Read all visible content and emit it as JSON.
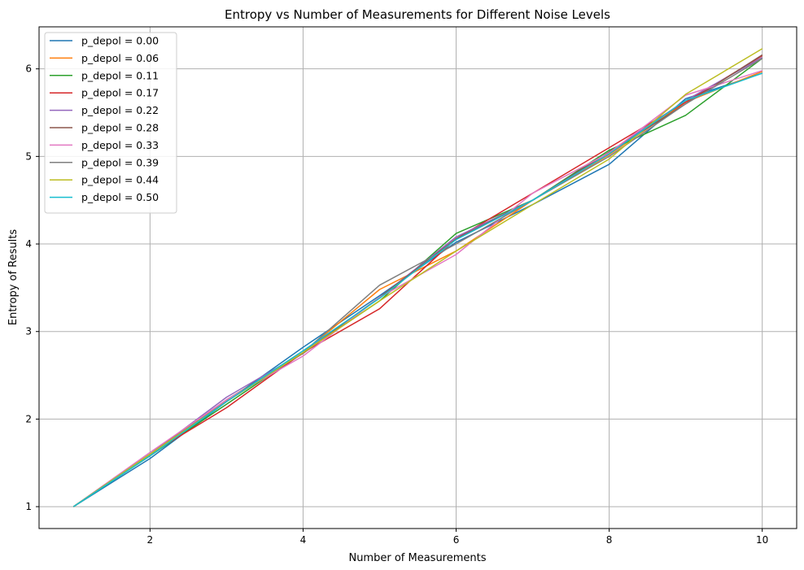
{
  "chart_data": {
    "type": "line",
    "title": "Entropy vs Number of Measurements for Different Noise Levels",
    "xlabel": "Number of Measurements",
    "ylabel": "Entropy of Results",
    "xlim": [
      0.55,
      10.45
    ],
    "ylim": [
      0.75,
      6.48
    ],
    "xticks": [
      2,
      4,
      6,
      8,
      10
    ],
    "yticks": [
      1,
      2,
      3,
      4,
      5,
      6
    ],
    "grid": true,
    "legend_position": "upper-left",
    "x": [
      1,
      2,
      3,
      4,
      5,
      6,
      7,
      8,
      9,
      10
    ],
    "series": [
      {
        "name": "p_depol = 0.00",
        "color": "#1f77b4",
        "values": [
          1.0,
          1.55,
          2.2,
          2.82,
          3.41,
          4.02,
          4.45,
          4.91,
          5.66,
          5.95
        ]
      },
      {
        "name": "p_depol = 0.06",
        "color": "#ff7f0e",
        "values": [
          1.0,
          1.6,
          2.21,
          2.76,
          3.48,
          3.92,
          4.5,
          5.02,
          5.62,
          5.97
        ]
      },
      {
        "name": "p_depol = 0.11",
        "color": "#2ca02c",
        "values": [
          1.0,
          1.58,
          2.17,
          2.76,
          3.35,
          4.12,
          4.5,
          5.07,
          5.47,
          6.12
        ]
      },
      {
        "name": "p_depol = 0.17",
        "color": "#d62728",
        "values": [
          1.0,
          1.6,
          2.13,
          2.76,
          3.26,
          4.06,
          4.58,
          5.1,
          5.62,
          6.15
        ]
      },
      {
        "name": "p_depol = 0.22",
        "color": "#9467bd",
        "values": [
          1.0,
          1.6,
          2.25,
          2.76,
          3.39,
          4.08,
          4.5,
          5.05,
          5.64,
          6.13
        ]
      },
      {
        "name": "p_depol = 0.28",
        "color": "#8c564b",
        "values": [
          1.0,
          1.6,
          2.22,
          2.75,
          3.39,
          4.06,
          4.5,
          5.05,
          5.6,
          6.16
        ]
      },
      {
        "name": "p_depol = 0.33",
        "color": "#e377c2",
        "values": [
          1.0,
          1.62,
          2.22,
          2.72,
          3.39,
          3.88,
          4.58,
          5.04,
          5.7,
          5.98
        ]
      },
      {
        "name": "p_depol = 0.39",
        "color": "#7f7f7f",
        "values": [
          1.0,
          1.6,
          2.2,
          2.76,
          3.53,
          4.0,
          4.5,
          5.0,
          5.6,
          6.12
        ]
      },
      {
        "name": "p_depol = 0.44",
        "color": "#bcbd22",
        "values": [
          1.0,
          1.6,
          2.2,
          2.76,
          3.35,
          3.92,
          4.45,
          4.97,
          5.71,
          6.23
        ]
      },
      {
        "name": "p_depol = 0.50",
        "color": "#17becf",
        "values": [
          1.0,
          1.58,
          2.2,
          2.78,
          3.38,
          4.05,
          4.5,
          5.03,
          5.64,
          5.95
        ]
      }
    ]
  }
}
